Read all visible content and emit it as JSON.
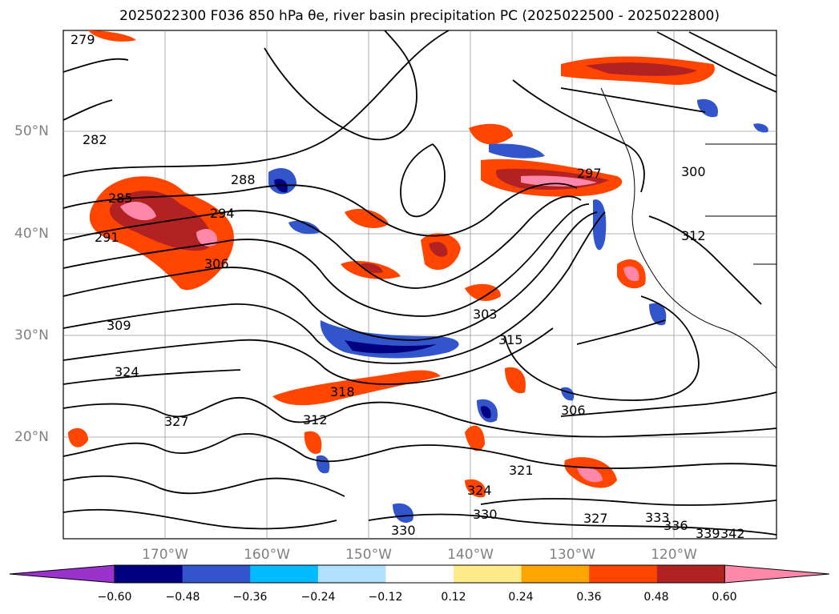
{
  "title": "2025022300 F036 850 hPa θe, river basin precipitation PC (2025022500 - 2025022800)",
  "map": {
    "lat_labels": [
      "50°N",
      "40°N",
      "30°N",
      "20°N"
    ],
    "lon_labels": [
      "170°W",
      "160°W",
      "150°W",
      "140°W",
      "130°W",
      "120°W"
    ]
  },
  "contour_labels": [
    "279",
    "282",
    "285",
    "288",
    "291",
    "294",
    "297",
    "300",
    "303",
    "306",
    "309",
    "312",
    "315",
    "318",
    "321",
    "324",
    "327",
    "330",
    "333",
    "336",
    "339",
    "342"
  ],
  "colorbar": {
    "ticks": [
      "−0.60",
      "−0.48",
      "−0.36",
      "−0.24",
      "−0.12",
      "0.12",
      "0.24",
      "0.36",
      "0.48",
      "0.60"
    ],
    "colors": [
      "#9933cc",
      "#000080",
      "#3355cc",
      "#00bbff",
      "#b0e0ff",
      "#ffffff",
      "#ffeb8a",
      "#ffa500",
      "#ff4500",
      "#b22222",
      "#ff88aa"
    ]
  }
}
